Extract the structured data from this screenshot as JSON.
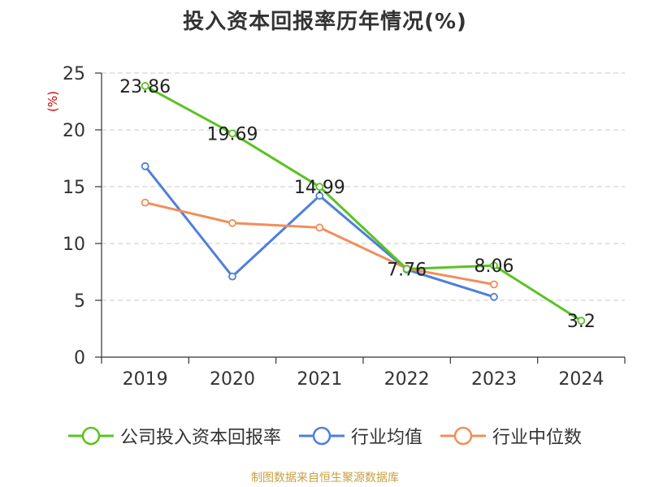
{
  "chart_data": {
    "type": "line",
    "title": "投入资本回报率历年情况(%)",
    "ylabel": "(%)",
    "categories": [
      "2019",
      "2020",
      "2021",
      "2022",
      "2023",
      "2024"
    ],
    "ylim": [
      0,
      25
    ],
    "yticks": [
      0,
      5,
      10,
      15,
      20,
      25
    ],
    "grid": true,
    "legend_position": "bottom",
    "series": [
      {
        "name": "公司投入资本回报率",
        "color": "#5ac322",
        "values": [
          23.86,
          19.69,
          14.99,
          7.76,
          8.06,
          3.2
        ],
        "labels": [
          "23.86",
          "19.69",
          "14.99",
          "7.76",
          "8.06",
          "3.2"
        ]
      },
      {
        "name": "行业均值",
        "color": "#4f7fdc",
        "values": [
          16.8,
          7.1,
          14.2,
          7.7,
          5.3,
          null
        ]
      },
      {
        "name": "行业中位数",
        "color": "#f28e5b",
        "values": [
          13.6,
          11.8,
          11.4,
          7.8,
          6.4,
          null
        ]
      }
    ]
  },
  "source_note": "制图数据来自恒生聚源数据库"
}
